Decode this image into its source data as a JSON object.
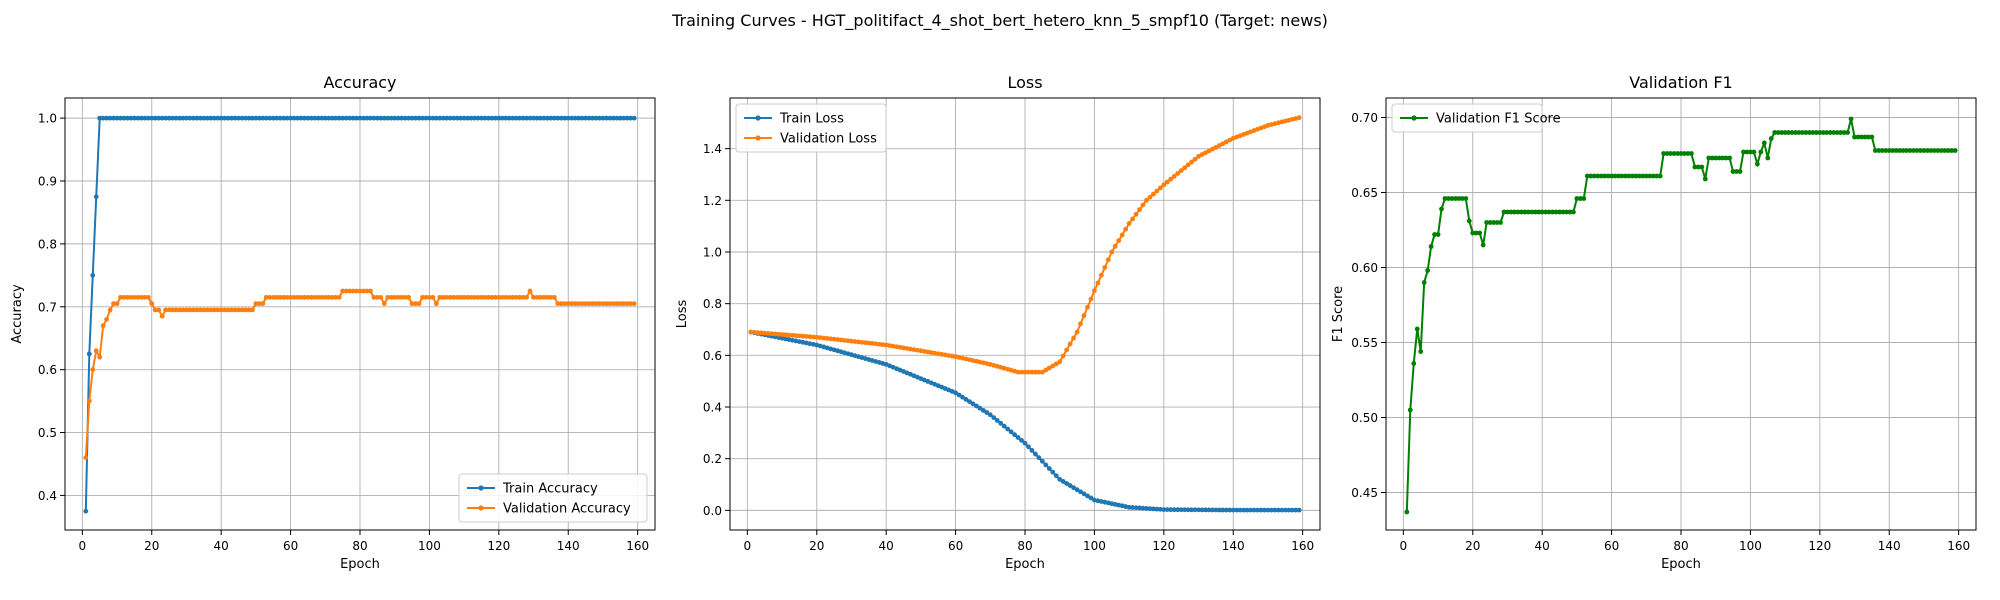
{
  "figure": {
    "title": "Training Curves - HGT_politifact_4_shot_bert_hetero_knn_5_smpf10 (Target: news)"
  },
  "colors": {
    "train": "#1f77b4",
    "validation": "#ff7f0e",
    "f1": "#008000",
    "grid": "#b0b0b0"
  },
  "chart_data": [
    {
      "type": "line",
      "title": "Accuracy",
      "xlabel": "Epoch",
      "ylabel": "Accuracy",
      "xlim": [
        -5,
        165
      ],
      "ylim": [
        0.345,
        1.032
      ],
      "xticks": [
        0,
        20,
        40,
        60,
        80,
        100,
        120,
        140,
        160
      ],
      "yticks": [
        0.4,
        0.5,
        0.6,
        0.7,
        0.8,
        0.9,
        1.0
      ],
      "ytick_labels": [
        "0.4",
        "0.5",
        "0.6",
        "0.7",
        "0.8",
        "0.9",
        "1.0"
      ],
      "grid": true,
      "legend_loc": "lower-right",
      "x": {
        "start": 1,
        "end": 159
      },
      "series": [
        {
          "name": "Train Accuracy",
          "color_key": "train",
          "segments": [
            [
              1,
              0.375
            ],
            [
              2,
              0.625
            ],
            [
              3,
              0.75
            ],
            [
              4,
              0.875
            ],
            [
              5,
              1.0
            ],
            [
              159,
              1.0
            ]
          ]
        },
        {
          "name": "Validation Accuracy",
          "color_key": "validation",
          "segments": [
            [
              1,
              0.46
            ],
            [
              2,
              0.55
            ],
            [
              3,
              0.6
            ],
            [
              4,
              0.63
            ],
            [
              5,
              0.62
            ],
            [
              6,
              0.67
            ],
            [
              7,
              0.68
            ],
            [
              8,
              0.695
            ],
            [
              9,
              0.705
            ],
            [
              10,
              0.705
            ],
            [
              11,
              0.715
            ],
            [
              19,
              0.715
            ],
            [
              20,
              0.705
            ],
            [
              21,
              0.695
            ],
            [
              22,
              0.695
            ],
            [
              23,
              0.685
            ],
            [
              24,
              0.695
            ],
            [
              49,
              0.695
            ],
            [
              50,
              0.705
            ],
            [
              52,
              0.705
            ],
            [
              53,
              0.715
            ],
            [
              74,
              0.715
            ],
            [
              75,
              0.725
            ],
            [
              83,
              0.725
            ],
            [
              84,
              0.715
            ],
            [
              86,
              0.715
            ],
            [
              87,
              0.705
            ],
            [
              88,
              0.715
            ],
            [
              94,
              0.715
            ],
            [
              95,
              0.705
            ],
            [
              97,
              0.705
            ],
            [
              98,
              0.715
            ],
            [
              101,
              0.715
            ],
            [
              102,
              0.705
            ],
            [
              103,
              0.715
            ],
            [
              128,
              0.715
            ],
            [
              129,
              0.725
            ],
            [
              130,
              0.715
            ],
            [
              136,
              0.715
            ],
            [
              137,
              0.705
            ],
            [
              159,
              0.705
            ]
          ]
        }
      ]
    },
    {
      "type": "line",
      "title": "Loss",
      "xlabel": "Epoch",
      "ylabel": "Loss",
      "xlim": [
        -5,
        165
      ],
      "ylim": [
        -0.076,
        1.596
      ],
      "xticks": [
        0,
        20,
        40,
        60,
        80,
        100,
        120,
        140,
        160
      ],
      "yticks": [
        0.0,
        0.2,
        0.4,
        0.6,
        0.8,
        1.0,
        1.2,
        1.4
      ],
      "ytick_labels": [
        "0.0",
        "0.2",
        "0.4",
        "0.6",
        "0.8",
        "1.0",
        "1.2",
        "1.4"
      ],
      "grid": true,
      "legend_loc": "upper-left",
      "x": {
        "start": 1,
        "end": 159
      },
      "series": [
        {
          "name": "Train Loss",
          "color_key": "train",
          "segments": [
            [
              1,
              0.69
            ],
            [
              20,
              0.64
            ],
            [
              40,
              0.565
            ],
            [
              60,
              0.455
            ],
            [
              70,
              0.37
            ],
            [
              80,
              0.26
            ],
            [
              90,
              0.12
            ],
            [
              100,
              0.04
            ],
            [
              110,
              0.012
            ],
            [
              120,
              0.003
            ],
            [
              140,
              0.001
            ],
            [
              159,
              0.001
            ]
          ]
        },
        {
          "name": "Validation Loss",
          "color_key": "validation",
          "segments": [
            [
              1,
              0.69
            ],
            [
              20,
              0.67
            ],
            [
              40,
              0.64
            ],
            [
              60,
              0.595
            ],
            [
              70,
              0.565
            ],
            [
              78,
              0.535
            ],
            [
              85,
              0.535
            ],
            [
              90,
              0.575
            ],
            [
              95,
              0.69
            ],
            [
              100,
              0.85
            ],
            [
              105,
              1.0
            ],
            [
              110,
              1.11
            ],
            [
              115,
              1.2
            ],
            [
              120,
              1.26
            ],
            [
              130,
              1.37
            ],
            [
              140,
              1.44
            ],
            [
              150,
              1.49
            ],
            [
              159,
              1.52
            ]
          ]
        }
      ]
    },
    {
      "type": "line",
      "title": "Validation F1",
      "xlabel": "Epoch",
      "ylabel": "F1 Score",
      "xlim": [
        -5,
        165
      ],
      "ylim": [
        0.425,
        0.713
      ],
      "xticks": [
        0,
        20,
        40,
        60,
        80,
        100,
        120,
        140,
        160
      ],
      "yticks": [
        0.45,
        0.5,
        0.55,
        0.6,
        0.65,
        0.7
      ],
      "ytick_labels": [
        "0.45",
        "0.50",
        "0.55",
        "0.60",
        "0.65",
        "0.70"
      ],
      "grid": true,
      "legend_loc": "upper-left",
      "x": {
        "start": 1,
        "end": 159
      },
      "series": [
        {
          "name": "Validation F1 Score",
          "color_key": "f1",
          "segments": [
            [
              1,
              0.437
            ],
            [
              2,
              0.505
            ],
            [
              3,
              0.536
            ],
            [
              4,
              0.559
            ],
            [
              5,
              0.544
            ],
            [
              6,
              0.59
            ],
            [
              7,
              0.598
            ],
            [
              8,
              0.614
            ],
            [
              9,
              0.622
            ],
            [
              10,
              0.622
            ],
            [
              11,
              0.639
            ],
            [
              12,
              0.646
            ],
            [
              18,
              0.646
            ],
            [
              19,
              0.631
            ],
            [
              20,
              0.623
            ],
            [
              22,
              0.623
            ],
            [
              23,
              0.615
            ],
            [
              24,
              0.63
            ],
            [
              28,
              0.63
            ],
            [
              29,
              0.637
            ],
            [
              49,
              0.637
            ],
            [
              50,
              0.646
            ],
            [
              52,
              0.646
            ],
            [
              53,
              0.661
            ],
            [
              74,
              0.661
            ],
            [
              75,
              0.676
            ],
            [
              83,
              0.676
            ],
            [
              84,
              0.667
            ],
            [
              86,
              0.667
            ],
            [
              87,
              0.659
            ],
            [
              88,
              0.673
            ],
            [
              94,
              0.673
            ],
            [
              95,
              0.664
            ],
            [
              97,
              0.664
            ],
            [
              98,
              0.677
            ],
            [
              101,
              0.677
            ],
            [
              102,
              0.669
            ],
            [
              103,
              0.677
            ],
            [
              104,
              0.683
            ],
            [
              105,
              0.673
            ],
            [
              106,
              0.686
            ],
            [
              107,
              0.69
            ],
            [
              128,
              0.69
            ],
            [
              129,
              0.699
            ],
            [
              130,
              0.687
            ],
            [
              135,
              0.687
            ],
            [
              136,
              0.678
            ],
            [
              159,
              0.678
            ]
          ]
        }
      ]
    }
  ]
}
